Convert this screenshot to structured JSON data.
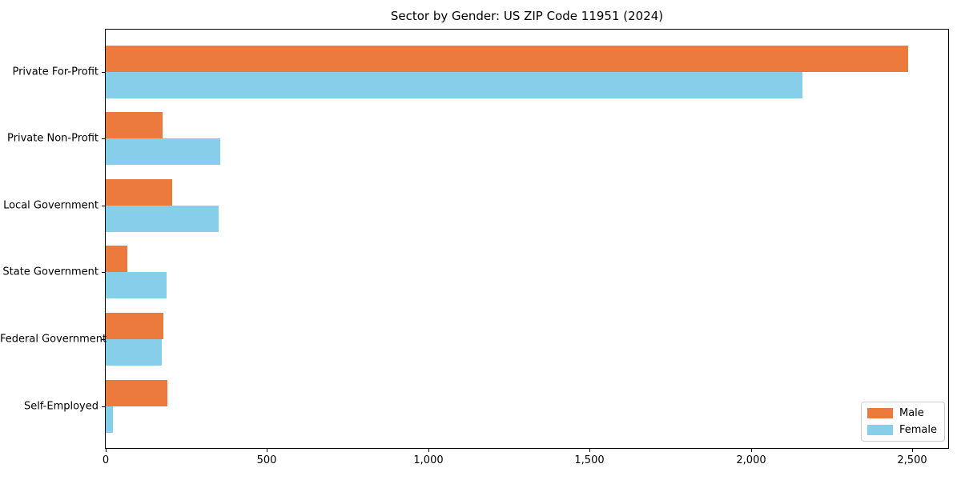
{
  "chart_data": {
    "type": "bar",
    "orientation": "horizontal",
    "title": "Sector by Gender: US ZIP Code 11951 (2024)",
    "categories": [
      "Private For-Profit",
      "Private Non-Profit",
      "Local Government",
      "State Government",
      "Federal Government",
      "Self-Employed"
    ],
    "series": [
      {
        "name": "Male",
        "color": "#eb7a3c",
        "values": [
          2486,
          176,
          207,
          68,
          178,
          190
        ]
      },
      {
        "name": "Female",
        "color": "#87ceeb",
        "values": [
          2159,
          355,
          349,
          188,
          174,
          23
        ]
      }
    ],
    "xlabel": "",
    "ylabel": "",
    "xlim": [
      0,
      2610
    ],
    "x_ticks": [
      0,
      500,
      1000,
      1500,
      2000,
      2500
    ],
    "x_tick_labels": [
      "0",
      "500",
      "1,000",
      "1,500",
      "2,000",
      "2,500"
    ],
    "grid": false,
    "legend": {
      "position": "lower right",
      "entries": [
        "Male",
        "Female"
      ]
    },
    "colors": {
      "axis": "#000000",
      "background": "#ffffff",
      "legend_border": "#cccccc"
    }
  }
}
